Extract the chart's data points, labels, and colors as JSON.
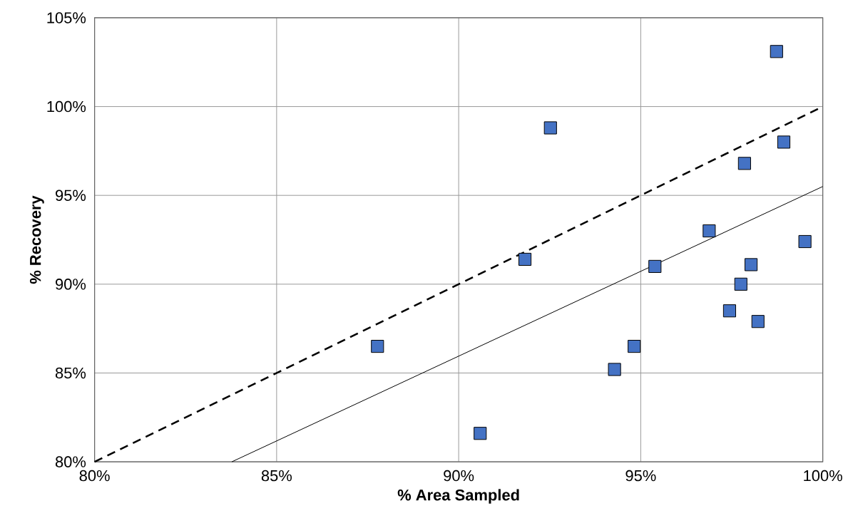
{
  "chart_data": {
    "type": "scatter",
    "xlabel": "% Area Sampled",
    "ylabel": "% Recovery",
    "xlim": [
      80,
      100
    ],
    "ylim": [
      80,
      105
    ],
    "xticks": [
      {
        "value": 80,
        "label": "80%"
      },
      {
        "value": 85,
        "label": "85%"
      },
      {
        "value": 90,
        "label": "90%"
      },
      {
        "value": 95,
        "label": "95%"
      },
      {
        "value": 100,
        "label": "100%"
      }
    ],
    "yticks": [
      {
        "value": 80,
        "label": "80%"
      },
      {
        "value": 85,
        "label": "85%"
      },
      {
        "value": 90,
        "label": "90%"
      },
      {
        "value": 95,
        "label": "95%"
      },
      {
        "value": 100,
        "label": "100%"
      },
      {
        "value": 105,
        "label": "105%"
      }
    ],
    "grid": true,
    "series": [
      {
        "color": "#4472c4",
        "marker": "square",
        "x": [
          87.77,
          90.59,
          91.82,
          92.52,
          94.28,
          94.82,
          95.39,
          96.88,
          97.44,
          97.75,
          97.85,
          98.03,
          98.22,
          98.73,
          98.93,
          99.51
        ],
        "values": [
          86.5,
          81.6,
          91.4,
          98.8,
          85.2,
          86.5,
          91.0,
          93.0,
          88.5,
          90.0,
          96.8,
          91.1,
          87.9,
          103.1,
          98.0,
          92.4
        ]
      },
      {
        "type": "line",
        "color": "#000000",
        "marker": "none",
        "line_style": "dashed",
        "x": [
          80,
          100
        ],
        "values": [
          80,
          100
        ]
      },
      {
        "type": "line",
        "color": "#000000",
        "marker": "none",
        "line_style": "solid",
        "x": [
          83.77,
          100
        ],
        "values": [
          80,
          95.5
        ]
      }
    ]
  }
}
